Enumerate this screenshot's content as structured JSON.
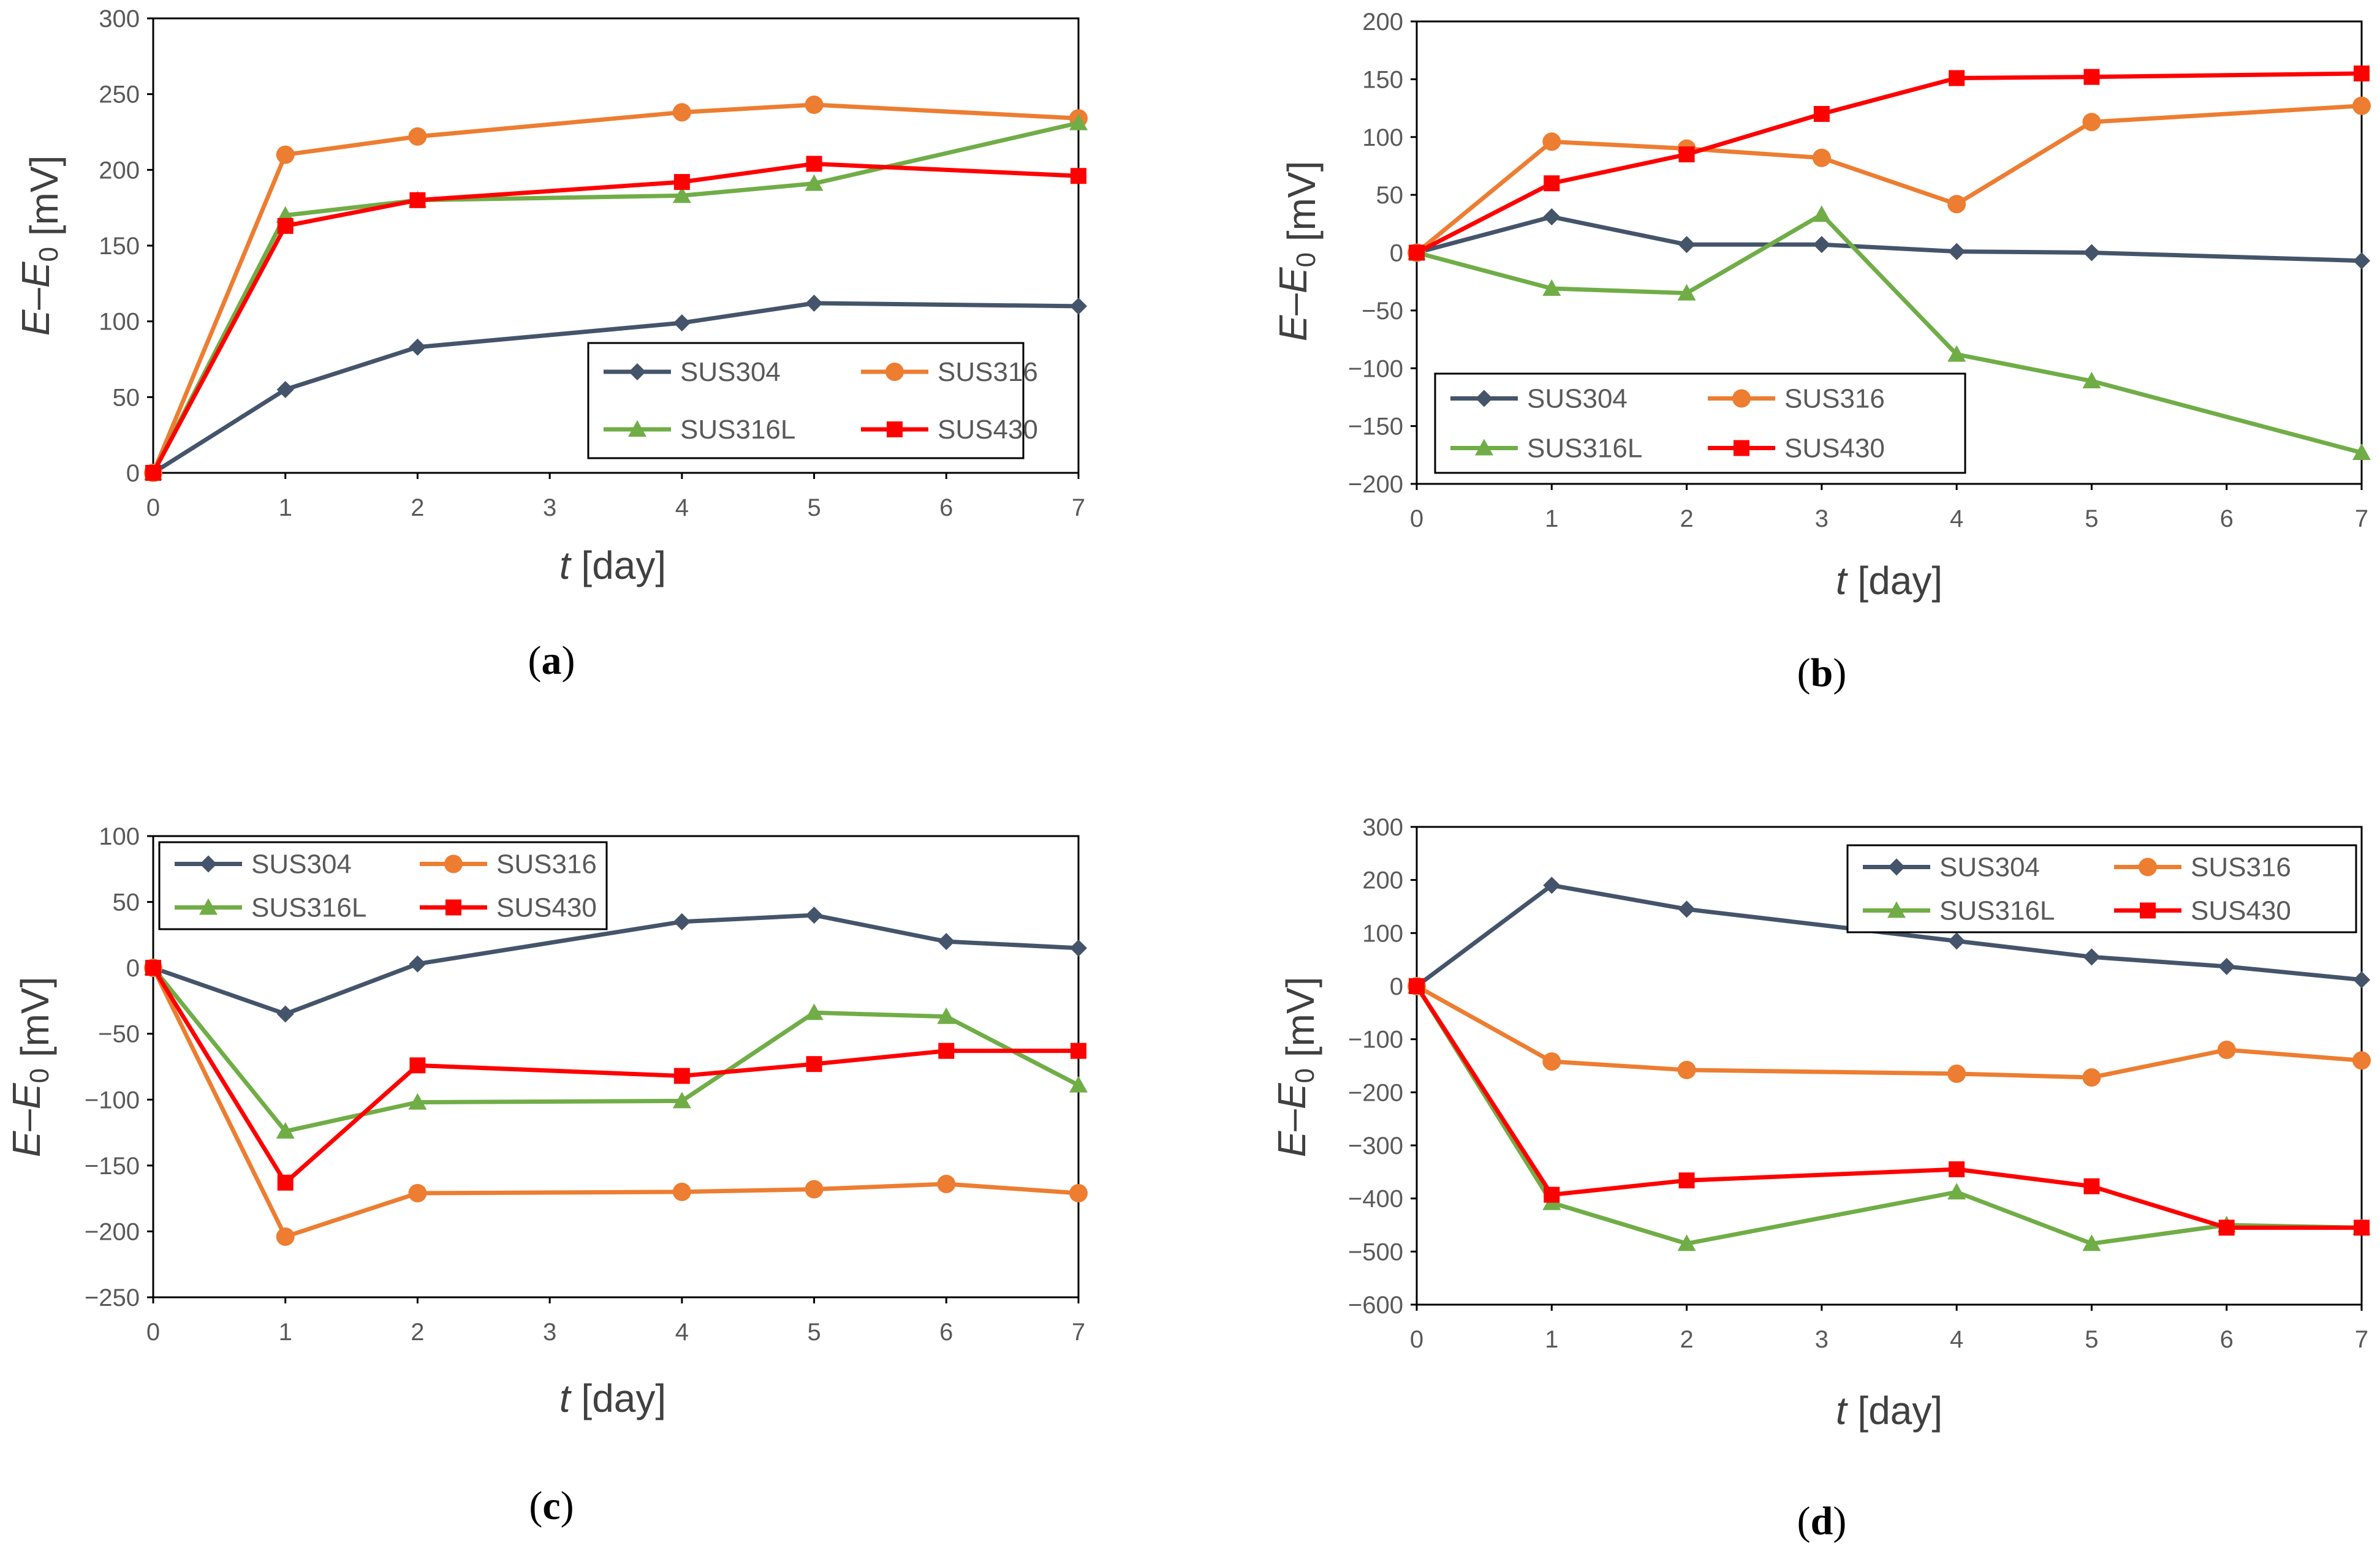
{
  "colors": {
    "SUS304": "#44546A",
    "SUS316": "#ED7D31",
    "SUS316L": "#70AD47",
    "SUS430": "#FF0000"
  },
  "chart_data": [
    {
      "panel": "a",
      "type": "line",
      "x": [
        0,
        1,
        2,
        4,
        5,
        7
      ],
      "xlim": [
        0,
        7
      ],
      "xticks": [
        0,
        1,
        2,
        3,
        4,
        5,
        6,
        7
      ],
      "ylim": [
        0,
        300
      ],
      "yticks": [
        0,
        50,
        100,
        150,
        200,
        250,
        300
      ],
      "series": [
        {
          "name": "SUS304",
          "marker": "diamond",
          "values": [
            0,
            55,
            83,
            99,
            112,
            110
          ]
        },
        {
          "name": "SUS316",
          "marker": "circle",
          "values": [
            0,
            210,
            222,
            238,
            243,
            234
          ]
        },
        {
          "name": "SUS316L",
          "marker": "triangle",
          "values": [
            0,
            170,
            180,
            183,
            191,
            231
          ]
        },
        {
          "name": "SUS430",
          "marker": "square",
          "values": [
            0,
            163,
            180,
            192,
            204,
            196
          ]
        }
      ],
      "ylabel": {
        "main": "E–E",
        "sub": "0",
        "unit": " [mV]"
      },
      "xlabel": {
        "var": "t",
        "unit": " [day]"
      },
      "legend": "bottom-right",
      "caption": {
        "open": "(",
        "letter": "a",
        "close": ")"
      }
    },
    {
      "panel": "b",
      "type": "line",
      "x": [
        0,
        1,
        2,
        3,
        4,
        5,
        7
      ],
      "xlim": [
        0,
        7
      ],
      "xticks": [
        0,
        1,
        2,
        3,
        4,
        5,
        6,
        7
      ],
      "ylim": [
        -200,
        200
      ],
      "yticks": [
        -200,
        -150,
        -100,
        -50,
        0,
        50,
        100,
        150,
        200
      ],
      "series": [
        {
          "name": "SUS304",
          "marker": "diamond",
          "values": [
            0,
            31,
            7,
            7,
            1,
            0,
            -7
          ]
        },
        {
          "name": "SUS316",
          "marker": "circle",
          "values": [
            0,
            96,
            90,
            82,
            42,
            113,
            127
          ]
        },
        {
          "name": "SUS316L",
          "marker": "triangle",
          "values": [
            0,
            -31,
            -35,
            33,
            -88,
            -111,
            -173
          ]
        },
        {
          "name": "SUS430",
          "marker": "square",
          "values": [
            0,
            60,
            85,
            120,
            151,
            152,
            155
          ]
        }
      ],
      "ylabel": {
        "main": "E–E",
        "sub": "0",
        "unit": " [mV]"
      },
      "xlabel": {
        "var": "t",
        "unit": " [day]"
      },
      "legend": "bottom-left",
      "caption": {
        "open": "(",
        "letter": "b",
        "close": ")"
      }
    },
    {
      "panel": "c",
      "type": "line",
      "x": [
        0,
        1,
        2,
        4,
        5,
        6,
        7
      ],
      "xlim": [
        0,
        7
      ],
      "xticks": [
        0,
        1,
        2,
        3,
        4,
        5,
        6,
        7
      ],
      "ylim": [
        -250,
        100
      ],
      "yticks": [
        -250,
        -200,
        -150,
        -100,
        -50,
        0,
        50,
        100
      ],
      "series": [
        {
          "name": "SUS304",
          "marker": "diamond",
          "values": [
            0,
            -35,
            3,
            35,
            40,
            20,
            15
          ]
        },
        {
          "name": "SUS316",
          "marker": "circle",
          "values": [
            0,
            -204,
            -171,
            -170,
            -168,
            -164,
            -171
          ]
        },
        {
          "name": "SUS316L",
          "marker": "triangle",
          "values": [
            0,
            -124,
            -102,
            -101,
            -34,
            -37,
            -89
          ]
        },
        {
          "name": "SUS430",
          "marker": "square",
          "values": [
            0,
            -163,
            -74,
            -82,
            -73,
            -63,
            -63
          ]
        }
      ],
      "ylabel": {
        "main": "E–E",
        "sub": "0",
        "unit": " [mV]"
      },
      "xlabel": {
        "var": "t",
        "unit": " [day]"
      },
      "legend": "top-left",
      "caption": {
        "open": "(",
        "letter": "c",
        "close": ")"
      }
    },
    {
      "panel": "d",
      "type": "line",
      "x": [
        0,
        1,
        2,
        4,
        5,
        6,
        7
      ],
      "xlim": [
        0,
        7
      ],
      "xticks": [
        0,
        1,
        2,
        3,
        4,
        5,
        6,
        7
      ],
      "ylim": [
        -600,
        300
      ],
      "yticks": [
        -600,
        -500,
        -400,
        -300,
        -200,
        -100,
        0,
        100,
        200,
        300
      ],
      "series": [
        {
          "name": "SUS304",
          "marker": "diamond",
          "values": [
            0,
            190,
            145,
            85,
            55,
            37,
            12
          ]
        },
        {
          "name": "SUS316",
          "marker": "circle",
          "values": [
            0,
            -142,
            -158,
            -165,
            -172,
            -120,
            -140
          ]
        },
        {
          "name": "SUS316L",
          "marker": "triangle",
          "values": [
            0,
            -408,
            -485,
            -388,
            -485,
            -450,
            -455
          ]
        },
        {
          "name": "SUS430",
          "marker": "square",
          "values": [
            0,
            -393,
            -366,
            -345,
            -377,
            -455,
            -455
          ]
        }
      ],
      "ylabel": {
        "main": "E–E",
        "sub": "0",
        "unit": " [mV]"
      },
      "xlabel": {
        "var": "t",
        "unit": " [day]"
      },
      "legend": "top-right",
      "caption": {
        "open": "(",
        "letter": "d",
        "close": ")"
      }
    }
  ]
}
